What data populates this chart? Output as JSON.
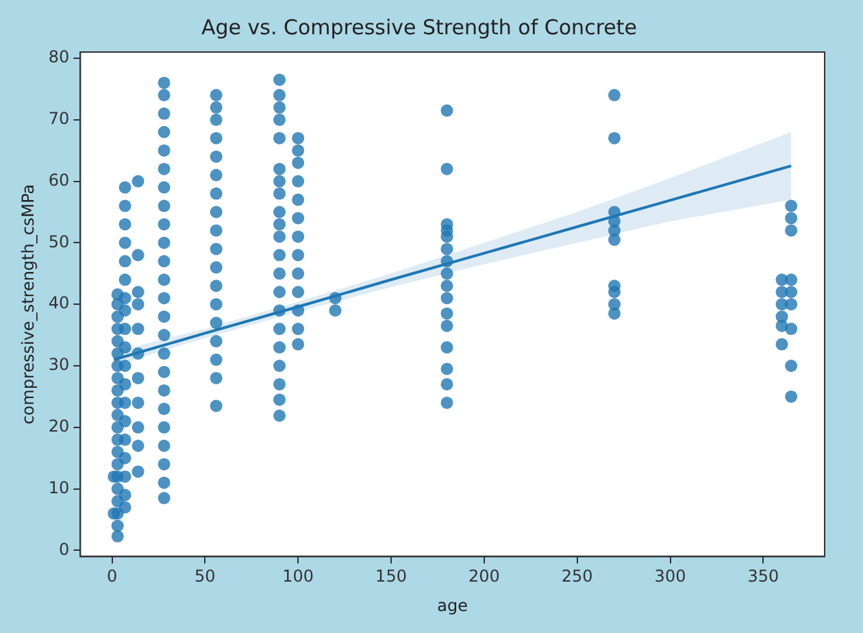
{
  "chart_data": {
    "type": "scatter",
    "title": "Age vs. Compressive Strength of Concrete",
    "xlabel": "age",
    "ylabel": "compressive_strength_csMPa",
    "xlim": [
      -17,
      383
    ],
    "xticks": [
      0,
      50,
      100,
      150,
      200,
      250,
      300,
      350
    ],
    "ylim": [
      -1,
      81
    ],
    "yticks": [
      0,
      10,
      20,
      30,
      40,
      50,
      60,
      70,
      80
    ],
    "grid": false,
    "legend": false,
    "series": [
      {
        "marker": "circle",
        "color": "#1f77b4",
        "x": [
          1,
          1,
          3,
          3,
          3,
          3,
          3,
          3,
          3,
          3,
          3,
          3,
          3,
          3,
          3,
          3,
          3,
          3,
          3,
          3,
          3,
          3,
          3,
          7,
          7,
          7,
          7,
          7,
          7,
          7,
          7,
          7,
          7,
          7,
          7,
          7,
          7,
          7,
          7,
          7,
          7,
          7,
          14,
          14,
          14,
          14,
          14,
          14,
          14,
          14,
          14,
          14,
          14,
          28,
          28,
          28,
          28,
          28,
          28,
          28,
          28,
          28,
          28,
          28,
          28,
          28,
          28,
          28,
          28,
          28,
          28,
          28,
          28,
          28,
          28,
          28,
          28,
          56,
          56,
          56,
          56,
          56,
          56,
          56,
          56,
          56,
          56,
          56,
          56,
          56,
          56,
          56,
          56,
          56,
          56,
          90,
          90,
          90,
          90,
          90,
          90,
          90,
          90,
          90,
          90,
          90,
          90,
          90,
          90,
          90,
          90,
          90,
          90,
          90,
          90,
          90,
          100,
          100,
          100,
          100,
          100,
          100,
          100,
          100,
          100,
          100,
          100,
          100,
          100,
          120,
          120,
          180,
          180,
          180,
          180,
          180,
          180,
          180,
          180,
          180,
          180,
          180,
          180,
          180,
          180,
          180,
          180,
          270,
          270,
          270,
          270,
          270,
          270,
          270,
          270,
          270,
          270,
          360,
          360,
          360,
          360,
          360,
          360,
          365,
          365,
          365,
          365,
          365,
          365,
          365,
          365,
          365
        ],
        "values": [
          6,
          12,
          2.3,
          4,
          6,
          8,
          10,
          12,
          14,
          16,
          18,
          20,
          22,
          24,
          26,
          28,
          30,
          32,
          34,
          36,
          38,
          40,
          41.6,
          7,
          9,
          12,
          15,
          18,
          21,
          24,
          27,
          30,
          33,
          36,
          39,
          41,
          44,
          47,
          50,
          53,
          56,
          59,
          12.8,
          17,
          20,
          24,
          28,
          32,
          36,
          40,
          42,
          48,
          60,
          8.5,
          11,
          14,
          17,
          20,
          23,
          26,
          29,
          32,
          35,
          38,
          41,
          44,
          47,
          50,
          53,
          56,
          59,
          62,
          65,
          68,
          71,
          74,
          76,
          23.5,
          28,
          31,
          34,
          37,
          40,
          43,
          46,
          49,
          52,
          55,
          58,
          61,
          64,
          67,
          70,
          72,
          74,
          21.9,
          24.5,
          27,
          30,
          33,
          36,
          39,
          42,
          45,
          48,
          51,
          53,
          55,
          58,
          60,
          62,
          67,
          70,
          72,
          74,
          76.5,
          33.5,
          36,
          39,
          42,
          45,
          48,
          51,
          54,
          57,
          60,
          63,
          65,
          67,
          39,
          41,
          24,
          27,
          29.5,
          33,
          36.5,
          38.5,
          41,
          43,
          45,
          47,
          49,
          51,
          52,
          53,
          62,
          71.5,
          38.5,
          40,
          42,
          43,
          50.5,
          52,
          53.5,
          55,
          67,
          74,
          33.5,
          36.5,
          38,
          40,
          42,
          44,
          25,
          30,
          36,
          40,
          42,
          44,
          52,
          54,
          56
        ]
      },
      {
        "type": "line",
        "color": "#1f77b4",
        "x": [
          1,
          50,
          100,
          150,
          200,
          250,
          300,
          365
        ],
        "values": [
          31,
          35.3,
          39.6,
          44,
          48.3,
          52.6,
          56.9,
          62.5
        ],
        "lower": [
          30,
          34.5,
          38.8,
          42.8,
          46.5,
          50,
          53.5,
          57
        ],
        "upper": [
          32.3,
          36,
          40.4,
          45,
          50,
          55,
          60.5,
          68
        ]
      }
    ]
  }
}
